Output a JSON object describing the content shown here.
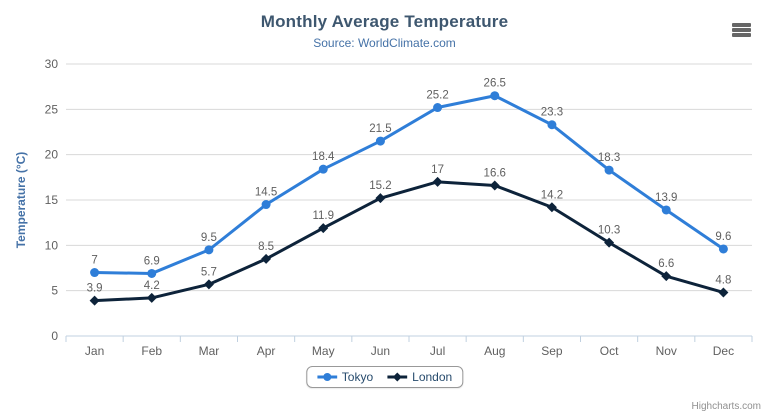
{
  "header": {
    "title": "Monthly Average Temperature",
    "subtitle": "Source: WorldClimate.com"
  },
  "export_menu": {
    "icon": "hamburger-menu"
  },
  "chart_data": {
    "type": "line",
    "title": "Monthly Average Temperature",
    "subtitle": "Source: WorldClimate.com",
    "categories": [
      "Jan",
      "Feb",
      "Mar",
      "Apr",
      "May",
      "Jun",
      "Jul",
      "Aug",
      "Sep",
      "Oct",
      "Nov",
      "Dec"
    ],
    "series": [
      {
        "name": "Tokyo",
        "color": "#2f7ed8",
        "marker": "circle",
        "values": [
          7,
          6.9,
          9.5,
          14.5,
          18.4,
          21.5,
          25.2,
          26.5,
          23.3,
          18.3,
          13.9,
          9.6
        ]
      },
      {
        "name": "London",
        "color": "#0d233a",
        "marker": "diamond",
        "values": [
          3.9,
          4.2,
          5.7,
          8.5,
          11.9,
          15.2,
          17,
          16.6,
          14.2,
          10.3,
          6.6,
          4.8
        ]
      }
    ],
    "xlabel": "",
    "ylabel": "Temperature (°C)",
    "ylim": [
      0,
      30
    ],
    "ytick_interval": 5,
    "grid": true,
    "data_labels": true,
    "legend_position": "bottom",
    "colors": {
      "grid_line": "#d8d8d8",
      "axis_line": "#C0D0E0",
      "axis_label": "#606060",
      "axis_title": "#4572A7",
      "data_label": "#606060",
      "title": "#3E576F",
      "subtitle": "#4572A7"
    }
  },
  "credits": {
    "label": "Highcharts.com"
  }
}
